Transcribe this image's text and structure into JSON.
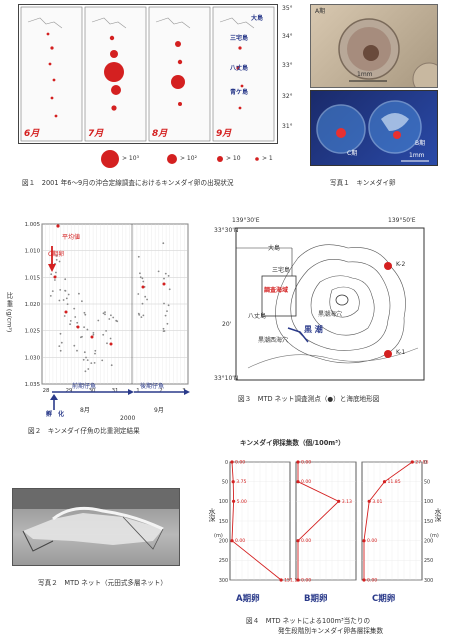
{
  "fig1": {
    "caption": "図１　2001 年6～9月の沖合定線調査におけるキンメダイ卵の出現状況",
    "months": [
      "6月",
      "7月",
      "8月",
      "9月"
    ],
    "lat_ticks": [
      "35°",
      "34°",
      "33°",
      "32°",
      "31°"
    ],
    "islands": [
      "大島",
      "三宅島",
      "八丈島",
      "青ケ島"
    ],
    "legend": [
      "> 10³",
      "> 10²",
      "> 10",
      "> 1"
    ]
  },
  "photo1": {
    "caption": "写真１　キンメダイ卵",
    "label_a": "A期",
    "label_b": "B期",
    "label_c": "C期",
    "scale_top": "1mm",
    "scale_bottom": "1mm"
  },
  "fig2": {
    "caption": "図２　キンメダイ仔魚の比重測定結果",
    "legend": "平均値",
    "y_label": "比 重 (g/cm³)",
    "y_ticks": [
      "1.005",
      "1.010",
      "1.015",
      "1.020",
      "1.025",
      "1.030",
      "1.035"
    ],
    "x_ticks": [
      "28",
      "29",
      "30",
      "31",
      "1",
      "2",
      "3"
    ],
    "month_aug": "8月",
    "month_sep": "9月",
    "year": "2000",
    "stage_c": "C期卵",
    "early_larva": "前期仔魚",
    "late_larva": "後期仔魚",
    "hatch": "孵　化"
  },
  "fig3": {
    "caption": "図３　MTD ネット調査測点（●）と海底地形図",
    "lon_left": "139°30'E",
    "lon_right": "139°50'E",
    "lat_top": "33°30'N",
    "lat_mid": "20'",
    "lat_bottom": "33°10'N",
    "islands": [
      "大島",
      "三宅島",
      "八丈島"
    ],
    "survey_area": "調査海域",
    "kuroshio": "黒 潮",
    "kuroshio_sea_hole": "黒潮海穴",
    "kuroshio_west_hole": "黒潮西海穴",
    "stations": [
      "K-2",
      "K-1"
    ]
  },
  "photo2": {
    "caption": "写真２　MTD ネット（元田式多層ネット）"
  },
  "fig4": {
    "title": "キンメダイ卵採集数（個/100m³）",
    "y_label": "水深",
    "y_unit": "(m)",
    "depths": [
      "0",
      "50",
      "100",
      "150",
      "200",
      "250",
      "300"
    ],
    "panels": [
      "A期卵",
      "B期卵",
      "C期卵"
    ],
    "a_values": [
      "0.00",
      "3.75",
      "5.00",
      "0.00",
      "151.15"
    ],
    "b_values": [
      "0.00",
      "0.00",
      "3.13",
      "0.00",
      "0.00"
    ],
    "c_values": [
      "27.86",
      "11.85",
      "3.01",
      "0.00",
      "0.00"
    ],
    "caption_line1": "図４　MTD ネットによる100m³当たりの",
    "caption_line2": "発生段階別キンメダイ卵各層採集数"
  },
  "colors": {
    "accent_red": "#d42020",
    "navy": "#2a3a8a"
  }
}
